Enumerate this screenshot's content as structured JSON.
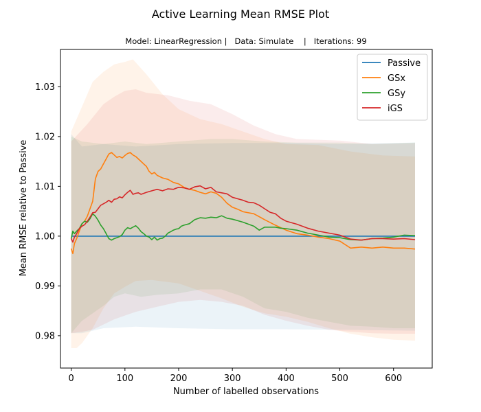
{
  "chart_data": {
    "type": "line",
    "title": "Active Learning Mean RMSE Plot",
    "subtitle": "Model: LinearRegression |   Data: Simulate    |   Iterations: 99",
    "xlabel": "Number of labelled observations",
    "ylabel": "Mean RMSE relative to Passive",
    "xlim": [
      -20,
      672
    ],
    "ylim": [
      0.9735,
      1.0375
    ],
    "xticks": [
      0,
      100,
      200,
      300,
      400,
      500,
      600
    ],
    "yticks": [
      0.98,
      0.99,
      1.0,
      1.01,
      1.02,
      1.03
    ],
    "ytick_labels": [
      "0.98",
      "0.99",
      "1.00",
      "1.01",
      "1.02",
      "1.03"
    ],
    "grid": false,
    "legend_position": "top-right",
    "series": [
      {
        "name": "Passive",
        "color": "#1f77b4",
        "x": [
          0,
          640
        ],
        "y": [
          1.0,
          1.0
        ],
        "band_upper": [
          [
            0,
            1.0205
          ],
          [
            20,
            1.018
          ],
          [
            60,
            1.0185
          ],
          [
            120,
            1.018
          ],
          [
            200,
            1.0185
          ],
          [
            300,
            1.0187
          ],
          [
            400,
            1.0187
          ],
          [
            500,
            1.0185
          ],
          [
            640,
            1.0188
          ]
        ],
        "band_lower": [
          [
            0,
            0.9805
          ],
          [
            20,
            0.9805
          ],
          [
            60,
            0.9815
          ],
          [
            120,
            0.9818
          ],
          [
            200,
            0.9815
          ],
          [
            300,
            0.9813
          ],
          [
            400,
            0.9813
          ],
          [
            500,
            0.9812
          ],
          [
            640,
            0.981
          ]
        ]
      },
      {
        "name": "GSx",
        "color": "#ff7f0e",
        "x": [
          0,
          3,
          6,
          10,
          15,
          20,
          25,
          30,
          35,
          40,
          45,
          50,
          55,
          60,
          65,
          70,
          75,
          80,
          85,
          90,
          95,
          100,
          105,
          110,
          115,
          120,
          125,
          130,
          135,
          140,
          145,
          150,
          155,
          160,
          170,
          180,
          190,
          200,
          210,
          220,
          230,
          240,
          250,
          260,
          270,
          280,
          290,
          300,
          310,
          320,
          340,
          360,
          380,
          400,
          420,
          440,
          460,
          480,
          500,
          520,
          540,
          560,
          580,
          600,
          620,
          640
        ],
        "y": [
          0.9975,
          0.9965,
          0.9985,
          0.9995,
          1.001,
          1.0025,
          1.003,
          1.004,
          1.0055,
          1.007,
          1.0115,
          1.013,
          1.0135,
          1.0145,
          1.0155,
          1.0165,
          1.0168,
          1.0163,
          1.0158,
          1.016,
          1.0157,
          1.0162,
          1.0166,
          1.0168,
          1.0163,
          1.016,
          1.0155,
          1.015,
          1.0145,
          1.014,
          1.013,
          1.0125,
          1.0128,
          1.0122,
          1.0117,
          1.0114,
          1.0108,
          1.0105,
          1.0098,
          1.0094,
          1.0092,
          1.0088,
          1.0085,
          1.0089,
          1.0086,
          1.0078,
          1.0066,
          1.0058,
          1.0054,
          1.0049,
          1.0045,
          1.0033,
          1.0022,
          1.0012,
          1.0005,
          1.0002,
          0.9998,
          0.9995,
          0.999,
          0.9976,
          0.9978,
          0.9976,
          0.9978,
          0.9976,
          0.9976,
          0.9974
        ],
        "band_upper": [
          [
            0,
            1.021
          ],
          [
            20,
            1.026
          ],
          [
            40,
            1.031
          ],
          [
            60,
            1.033
          ],
          [
            80,
            1.0345
          ],
          [
            100,
            1.035
          ],
          [
            115,
            1.0355
          ],
          [
            140,
            1.0325
          ],
          [
            170,
            1.0285
          ],
          [
            200,
            1.0255
          ],
          [
            240,
            1.0235
          ],
          [
            280,
            1.0225
          ],
          [
            320,
            1.021
          ],
          [
            360,
            1.0195
          ],
          [
            400,
            1.0185
          ],
          [
            460,
            1.0183
          ],
          [
            520,
            1.017
          ],
          [
            580,
            1.0162
          ],
          [
            640,
            1.016
          ]
        ],
        "band_lower": [
          [
            0,
            0.9775
          ],
          [
            10,
            0.9775
          ],
          [
            20,
            0.9785
          ],
          [
            40,
            0.9815
          ],
          [
            60,
            0.9855
          ],
          [
            80,
            0.9885
          ],
          [
            100,
            0.9898
          ],
          [
            120,
            0.991
          ],
          [
            150,
            0.9912
          ],
          [
            200,
            0.9905
          ],
          [
            240,
            0.989
          ],
          [
            280,
            0.9875
          ],
          [
            320,
            0.9858
          ],
          [
            360,
            0.9845
          ],
          [
            400,
            0.9838
          ],
          [
            440,
            0.9828
          ],
          [
            480,
            0.9815
          ],
          [
            520,
            0.9804
          ],
          [
            560,
            0.9797
          ],
          [
            600,
            0.9792
          ],
          [
            640,
            0.979
          ]
        ]
      },
      {
        "name": "GSy",
        "color": "#2ca02c",
        "x": [
          0,
          3,
          6,
          10,
          15,
          20,
          25,
          30,
          35,
          40,
          45,
          50,
          55,
          60,
          65,
          70,
          75,
          80,
          85,
          90,
          95,
          100,
          105,
          110,
          115,
          120,
          125,
          130,
          135,
          140,
          145,
          150,
          155,
          160,
          165,
          170,
          175,
          180,
          185,
          190,
          195,
          200,
          205,
          210,
          220,
          230,
          240,
          250,
          260,
          270,
          280,
          290,
          300,
          310,
          320,
          330,
          340,
          350,
          360,
          370,
          380,
          390,
          400,
          420,
          440,
          460,
          480,
          500,
          520,
          540,
          560,
          580,
          600,
          620,
          640
        ],
        "y": [
          0.9995,
          1.001,
          1.0005,
          1.001,
          1.0015,
          1.0025,
          1.003,
          1.0028,
          1.0035,
          1.0045,
          1.004,
          1.0032,
          1.0022,
          1.0015,
          1.0005,
          0.9995,
          0.9992,
          0.9995,
          0.9997,
          0.9999,
          1.0003,
          1.0012,
          1.0017,
          1.0015,
          1.0018,
          1.0021,
          1.0016,
          1.0009,
          1.0005,
          1.0,
          0.9998,
          0.9993,
          0.9998,
          0.9992,
          0.9995,
          0.9996,
          1.0,
          1.0006,
          1.0009,
          1.0012,
          1.0014,
          1.0015,
          1.002,
          1.0022,
          1.0025,
          1.0033,
          1.0037,
          1.0036,
          1.0038,
          1.0037,
          1.0041,
          1.0036,
          1.0034,
          1.0031,
          1.0028,
          1.0024,
          1.002,
          1.0012,
          1.0018,
          1.0018,
          1.0018,
          1.0016,
          1.0015,
          1.0012,
          1.0006,
          1.0002,
          0.9998,
          0.9997,
          0.9993,
          0.9992,
          0.9995,
          0.9996,
          0.9998,
          1.0002,
          1.0001
        ],
        "band_upper": [
          [
            0,
            1.02
          ],
          [
            20,
            1.019
          ],
          [
            60,
            1.0185
          ],
          [
            100,
            1.019
          ],
          [
            140,
            1.0185
          ],
          [
            200,
            1.019
          ],
          [
            260,
            1.0195
          ],
          [
            300,
            1.0195
          ],
          [
            360,
            1.019
          ],
          [
            420,
            1.0188
          ],
          [
            500,
            1.0188
          ],
          [
            560,
            1.0185
          ],
          [
            640,
            1.0188
          ]
        ],
        "band_lower": [
          [
            0,
            0.9805
          ],
          [
            20,
            0.983
          ],
          [
            40,
            0.9845
          ],
          [
            60,
            0.986
          ],
          [
            80,
            0.9878
          ],
          [
            100,
            0.9885
          ],
          [
            130,
            0.9878
          ],
          [
            160,
            0.9882
          ],
          [
            200,
            0.9885
          ],
          [
            240,
            0.9893
          ],
          [
            280,
            0.9893
          ],
          [
            320,
            0.9878
          ],
          [
            360,
            0.9855
          ],
          [
            400,
            0.9848
          ],
          [
            440,
            0.9836
          ],
          [
            480,
            0.9828
          ],
          [
            520,
            0.982
          ],
          [
            560,
            0.9818
          ],
          [
            600,
            0.9815
          ],
          [
            640,
            0.9815
          ]
        ]
      },
      {
        "name": "iGS",
        "color": "#d62728",
        "x": [
          0,
          3,
          6,
          10,
          15,
          20,
          25,
          30,
          35,
          40,
          45,
          50,
          55,
          60,
          65,
          70,
          75,
          80,
          85,
          90,
          95,
          100,
          105,
          110,
          115,
          120,
          125,
          130,
          140,
          150,
          160,
          170,
          180,
          190,
          200,
          210,
          220,
          230,
          240,
          250,
          260,
          270,
          280,
          290,
          300,
          310,
          320,
          330,
          340,
          350,
          360,
          370,
          380,
          390,
          400,
          420,
          440,
          460,
          480,
          500,
          520,
          540,
          560,
          580,
          600,
          620,
          640
        ],
        "y": [
          0.9995,
          0.9988,
          0.9998,
          1.0005,
          1.0015,
          1.002,
          1.0023,
          1.003,
          1.0038,
          1.0047,
          1.0048,
          1.0055,
          1.0062,
          1.0065,
          1.0068,
          1.0072,
          1.0068,
          1.0074,
          1.0075,
          1.0079,
          1.0077,
          1.0083,
          1.0088,
          1.0092,
          1.0084,
          1.0086,
          1.0087,
          1.0084,
          1.0088,
          1.0091,
          1.0094,
          1.0091,
          1.0095,
          1.0094,
          1.0098,
          1.0097,
          1.0094,
          1.0099,
          1.0101,
          1.0095,
          1.0098,
          1.0089,
          1.0087,
          1.0085,
          1.0078,
          1.0075,
          1.0072,
          1.0068,
          1.0067,
          1.0062,
          1.0055,
          1.0048,
          1.0045,
          1.0036,
          1.003,
          1.0024,
          1.0016,
          1.001,
          1.0006,
          1.0002,
          0.9994,
          0.9992,
          0.9995,
          0.9995,
          0.9994,
          0.9995,
          0.9993
        ],
        "band_upper": [
          [
            0,
            1.019
          ],
          [
            30,
            1.0225
          ],
          [
            60,
            1.0265
          ],
          [
            80,
            1.028
          ],
          [
            100,
            1.0292
          ],
          [
            120,
            1.0295
          ],
          [
            140,
            1.0288
          ],
          [
            180,
            1.0283
          ],
          [
            220,
            1.0272
          ],
          [
            260,
            1.0265
          ],
          [
            300,
            1.0245
          ],
          [
            340,
            1.0222
          ],
          [
            380,
            1.0205
          ],
          [
            420,
            1.0195
          ],
          [
            500,
            1.0192
          ],
          [
            560,
            1.0185
          ],
          [
            640,
            1.0187
          ]
        ],
        "band_lower": [
          [
            0,
            0.9805
          ],
          [
            20,
            0.9808
          ],
          [
            40,
            0.9812
          ],
          [
            80,
            0.9833
          ],
          [
            120,
            0.9848
          ],
          [
            160,
            0.9858
          ],
          [
            200,
            0.9868
          ],
          [
            240,
            0.9872
          ],
          [
            280,
            0.9868
          ],
          [
            320,
            0.986
          ],
          [
            360,
            0.9842
          ],
          [
            400,
            0.983
          ],
          [
            440,
            0.982
          ],
          [
            480,
            0.9812
          ],
          [
            520,
            0.9808
          ],
          [
            560,
            0.9805
          ],
          [
            600,
            0.9804
          ],
          [
            640,
            0.9804
          ]
        ]
      }
    ]
  }
}
